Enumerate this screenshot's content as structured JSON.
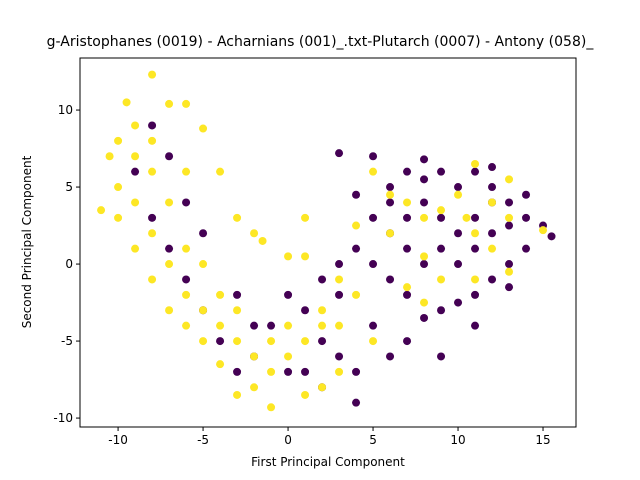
{
  "chart_data": {
    "type": "scatter",
    "title": "g-Aristophanes (0019) - Acharnians (001)_.txt-Plutarch (0007) - Antony (058)_",
    "x_label": "First Principal Component",
    "y_label": "Second Principal Component",
    "xlim": [
      -12.24,
      16.94
    ],
    "ylim": [
      -10.58,
      13.38
    ],
    "xticks": [
      -10,
      -5,
      0,
      5,
      10,
      15
    ],
    "yticks": [
      -10,
      -5,
      0,
      5,
      10
    ],
    "series": [
      {
        "color": "#440154",
        "x": [
          6,
          7,
          8,
          9,
          10,
          11,
          12,
          13,
          14,
          15,
          15.5,
          14,
          13,
          12,
          11,
          10,
          9,
          8,
          7,
          6,
          5,
          6,
          7,
          8,
          9,
          10,
          11,
          12,
          13,
          14,
          10,
          9,
          8,
          7,
          11,
          12,
          6,
          5,
          4,
          3,
          5,
          8,
          12,
          4,
          3,
          2,
          1,
          2,
          3,
          4,
          5,
          6,
          7,
          3,
          4,
          0,
          -1,
          -2,
          -3,
          -4,
          -5,
          -6,
          -7,
          -8,
          -9,
          -8,
          -7,
          -6,
          -5,
          -3,
          -2,
          1,
          2,
          0,
          9,
          11,
          13
        ],
        "y": [
          5,
          6,
          5.5,
          6,
          5,
          6,
          5,
          4,
          3,
          2.5,
          1.8,
          1,
          0,
          -1,
          -2,
          -2.5,
          -3,
          -3.5,
          -2,
          -1,
          0,
          2,
          3,
          4,
          3,
          2,
          3,
          2,
          2.5,
          4.5,
          0,
          1,
          0,
          1,
          1,
          4,
          4,
          3,
          4.5,
          7.2,
          7,
          6.8,
          6.3,
          1,
          0,
          -1,
          -3,
          -5,
          -6,
          -7,
          -4,
          -6,
          -5,
          -2,
          -9,
          -2,
          -4,
          -6,
          -7,
          -5,
          -3,
          -1,
          1,
          3,
          6,
          9,
          7,
          4,
          2,
          -2,
          -4,
          -7,
          -8,
          -7,
          -6,
          -4,
          -1.5
        ]
      },
      {
        "color": "#fde725",
        "x": [
          -11,
          -10,
          -10.5,
          -9,
          -9.5,
          -8,
          -8,
          -9,
          -8,
          -7,
          -6,
          -5,
          -4,
          -3,
          -2,
          -1,
          -2,
          -3,
          -4,
          -5,
          -6,
          -7,
          -8,
          -9,
          -10,
          -7,
          -6,
          -5,
          -6,
          -7,
          -4,
          -3,
          -2,
          -1.5,
          0,
          -6,
          -5,
          -4,
          -3,
          -1,
          0,
          1,
          0,
          1,
          2,
          -1,
          3,
          2,
          3,
          4,
          1,
          1,
          3,
          4,
          5,
          6,
          7,
          8,
          9,
          10,
          10.5,
          11,
          12,
          13,
          13,
          11,
          8,
          9,
          6,
          12,
          8,
          7,
          11,
          13,
          15,
          5,
          2,
          -9,
          -8,
          -10
        ],
        "y": [
          3.5,
          5,
          7,
          9,
          10.5,
          12.3,
          8,
          4,
          2,
          0,
          -2,
          -3,
          -4,
          -5,
          -6,
          -7,
          -8,
          -8.5,
          -6.5,
          -5,
          -4,
          -3,
          -1,
          1,
          3,
          4,
          6,
          8.8,
          10.4,
          10.4,
          6,
          3,
          2,
          1.5,
          0.5,
          1,
          0,
          -2,
          -3,
          -5,
          -6,
          -5,
          -4,
          -8.5,
          -8,
          -9.3,
          -7,
          -3,
          -4,
          -2,
          3,
          0.5,
          -1,
          2.5,
          6,
          4.5,
          4,
          3,
          3.5,
          4.5,
          3,
          2,
          1,
          3,
          -0.5,
          -1,
          0.5,
          -1,
          2,
          4,
          -2.5,
          -1.5,
          6.5,
          5.5,
          2.2,
          -5,
          -4,
          7,
          6,
          8
        ]
      }
    ]
  }
}
